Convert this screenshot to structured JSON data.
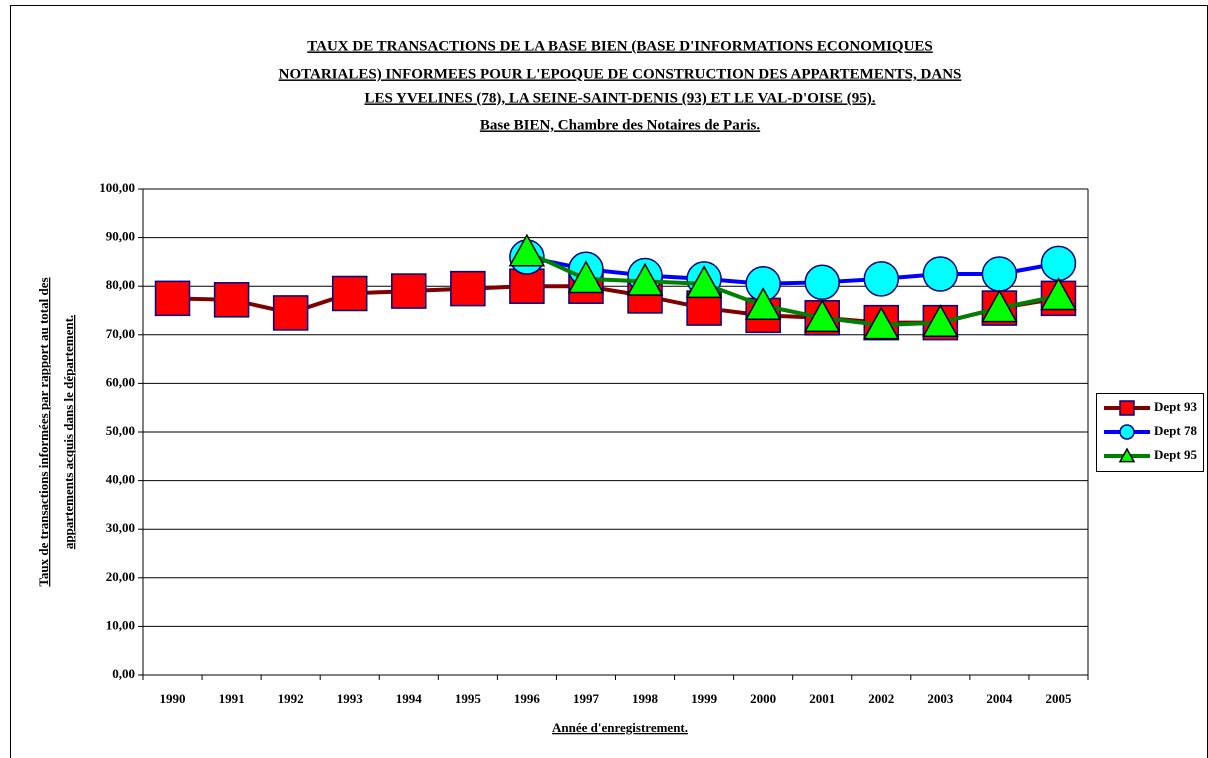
{
  "chart_data": {
    "type": "line",
    "title": [
      "TAUX DE TRANSACTIONS DE LA BASE BIEN (BASE D'INFORMATIONS ECONOMIQUES ",
      "NOTARIALES) INFORMEES POUR L'EPOQUE DE CONSTRUCTION DES APPARTEMENTS, DANS",
      "LES YVELINES (78), LA SEINE-SAINT-DENIS (93) ET LE VAL-D'OISE (95)."
    ],
    "subtitle": "Base BIEN, Chambre des Notaires de Paris.",
    "y_label": [
      "Taux de transactions informées par rapport au total des",
      "appartements acquis dans le département."
    ],
    "x_label": "Année d'enregistrement.",
    "categories": [
      "1990",
      "1991",
      "1992",
      "1993",
      "1994",
      "1995",
      "1996",
      "1997",
      "1998",
      "1999",
      "2000",
      "2001",
      "2002",
      "2003",
      "2004",
      "2005"
    ],
    "series": [
      {
        "name": "Dept 93",
        "color": "#800000",
        "marker": "square",
        "marker_color": "#ff0000",
        "values": [
          77.5,
          77.2,
          74.5,
          78.5,
          79,
          79.5,
          80,
          80,
          78,
          75.5,
          74,
          73.5,
          72.5,
          72.5,
          75.5,
          77.5
        ]
      },
      {
        "name": "Dept 78",
        "color": "#0000ff",
        "marker": "circle",
        "marker_color": "#00ffff",
        "values": [
          null,
          null,
          null,
          null,
          null,
          null,
          86,
          83.5,
          82.2,
          81.5,
          80.5,
          80.8,
          81.5,
          82.5,
          82.5,
          84.7
        ]
      },
      {
        "name": "Dept 95",
        "color": "#008000",
        "marker": "triangle",
        "marker_color": "#00ff00",
        "values": [
          null,
          null,
          null,
          null,
          null,
          null,
          87,
          81.5,
          81,
          80.5,
          76,
          73.5,
          72,
          72.5,
          75.5,
          78
        ]
      }
    ],
    "ylim": [
      0,
      100
    ],
    "yticks": [
      {
        "value": 0,
        "label": "0,00"
      },
      {
        "value": 10,
        "label": "10,00"
      },
      {
        "value": 20,
        "label": "20,00"
      },
      {
        "value": 30,
        "label": "30,00"
      },
      {
        "value": 40,
        "label": "40,00"
      },
      {
        "value": 50,
        "label": "50,00"
      },
      {
        "value": 60,
        "label": "60,00"
      },
      {
        "value": 70,
        "label": "70,00"
      },
      {
        "value": 80,
        "label": "80,00"
      },
      {
        "value": 90,
        "label": "90,00"
      },
      {
        "value": 100,
        "label": "100,00"
      }
    ],
    "grid": true,
    "legend": "right"
  }
}
